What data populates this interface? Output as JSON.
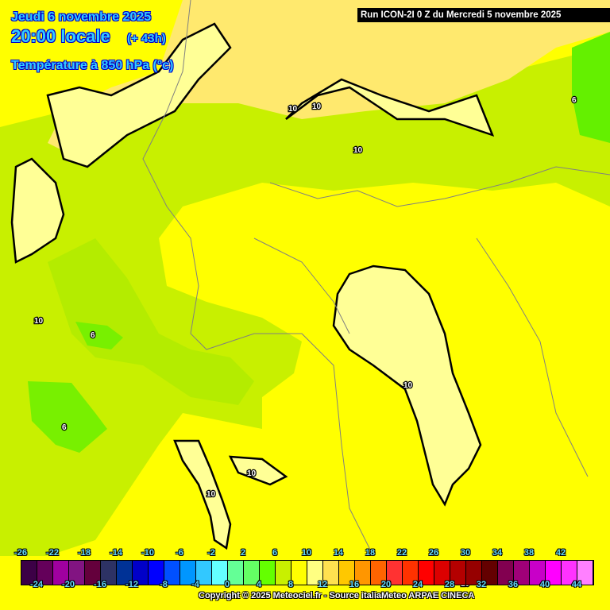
{
  "header": {
    "date": "Jeudi 6 novembre 2025",
    "time": "20:00 locale",
    "lead": "(+ 43h)",
    "parameter": "Température à 850 hPa (°c)",
    "run": "Run ICON-2I 0 Z du Mercredi 5 novembre 2025"
  },
  "legend": {
    "colors": [
      "#3c0046",
      "#64005a",
      "#a000a0",
      "#821482",
      "#64003c",
      "#2d3264",
      "#003296",
      "#0000c8",
      "#0000ff",
      "#0050ff",
      "#0096ff",
      "#32c8ff",
      "#64ffff",
      "#64ff96",
      "#64ff64",
      "#64ff00",
      "#c8f000",
      "#ffff00",
      "#ffff82",
      "#ffe150",
      "#ffc800",
      "#ff9600",
      "#ff6400",
      "#ff3232",
      "#ff3200",
      "#ff0000",
      "#dc0000",
      "#b40000",
      "#960000",
      "#640000",
      "#820050",
      "#a00078",
      "#c800c8",
      "#ff00ff",
      "#ff32ff",
      "#ff80ff"
    ],
    "top_labels": [
      "-26",
      "-22",
      "-18",
      "-14",
      "-10",
      "-6",
      "-2",
      "2",
      "6",
      "10",
      "14",
      "18",
      "22",
      "26",
      "30",
      "34",
      "38",
      "42"
    ],
    "bottom_labels": [
      "-24",
      "-20",
      "-16",
      "-12",
      "-8",
      "-4",
      "0",
      "4",
      "8",
      "12",
      "16",
      "20",
      "24",
      "28",
      "32",
      "36",
      "40",
      "44"
    ]
  },
  "contour_labels": [
    "10",
    "10",
    "10",
    "10",
    "6",
    "10",
    "6",
    "10",
    "10",
    "6",
    "10",
    "10"
  ],
  "colors": {
    "warm": "#ffff00",
    "cool": "#c8f000",
    "cooler": "#78f000",
    "pale": "#ffff96",
    "orange": "#ffd040"
  },
  "copyright": "Copyright © 2025 Meteociel.fr - Source italiaMeteo ARPAE CINECA"
}
